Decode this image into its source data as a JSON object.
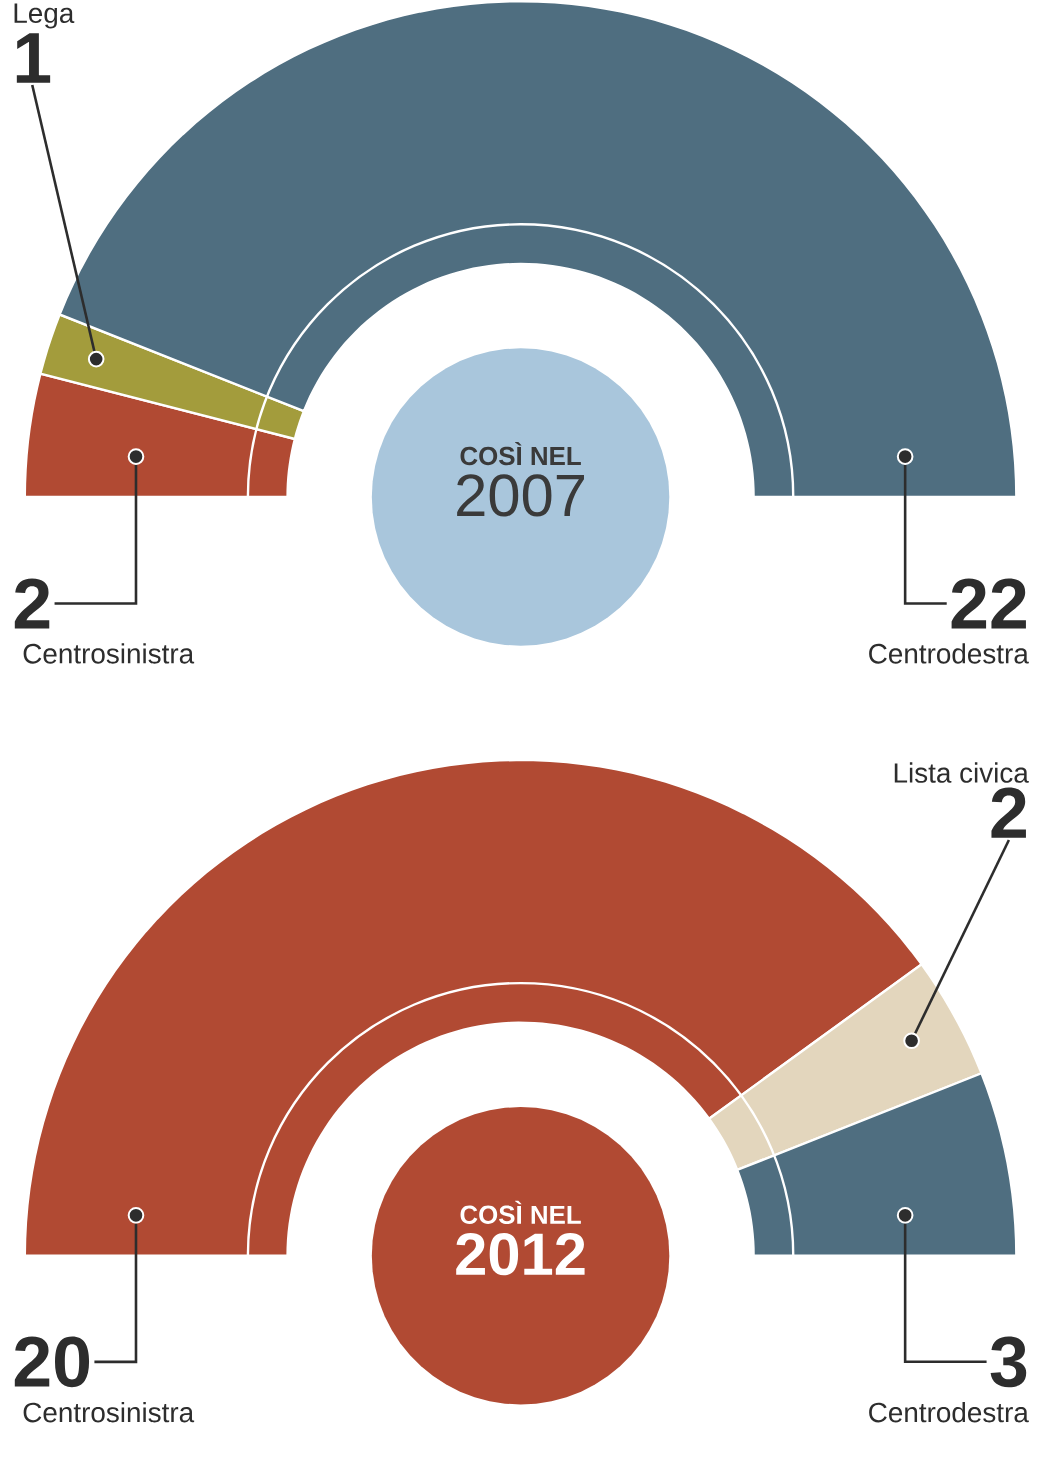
{
  "chart_data": [
    {
      "type": "donut",
      "title": "COSÌ NEL",
      "subtitle": "2007",
      "categories": [
        "Centrosinistra",
        "Lega",
        "Centrodestra"
      ],
      "values": [
        2,
        1,
        22
      ],
      "colors": [
        "#b14a33",
        "#a39c3c",
        "#4f6e80"
      ],
      "data_labels": true
    },
    {
      "type": "donut",
      "title": "COSÌ NEL",
      "subtitle": "2012",
      "categories": [
        "Centrosinistra",
        "Lista civica",
        "Centrodestra"
      ],
      "values": [
        20,
        2,
        3
      ],
      "colors": [
        "#b14a33",
        "#e3d6bd",
        "#4f6e80"
      ],
      "data_labels": true
    }
  ]
}
